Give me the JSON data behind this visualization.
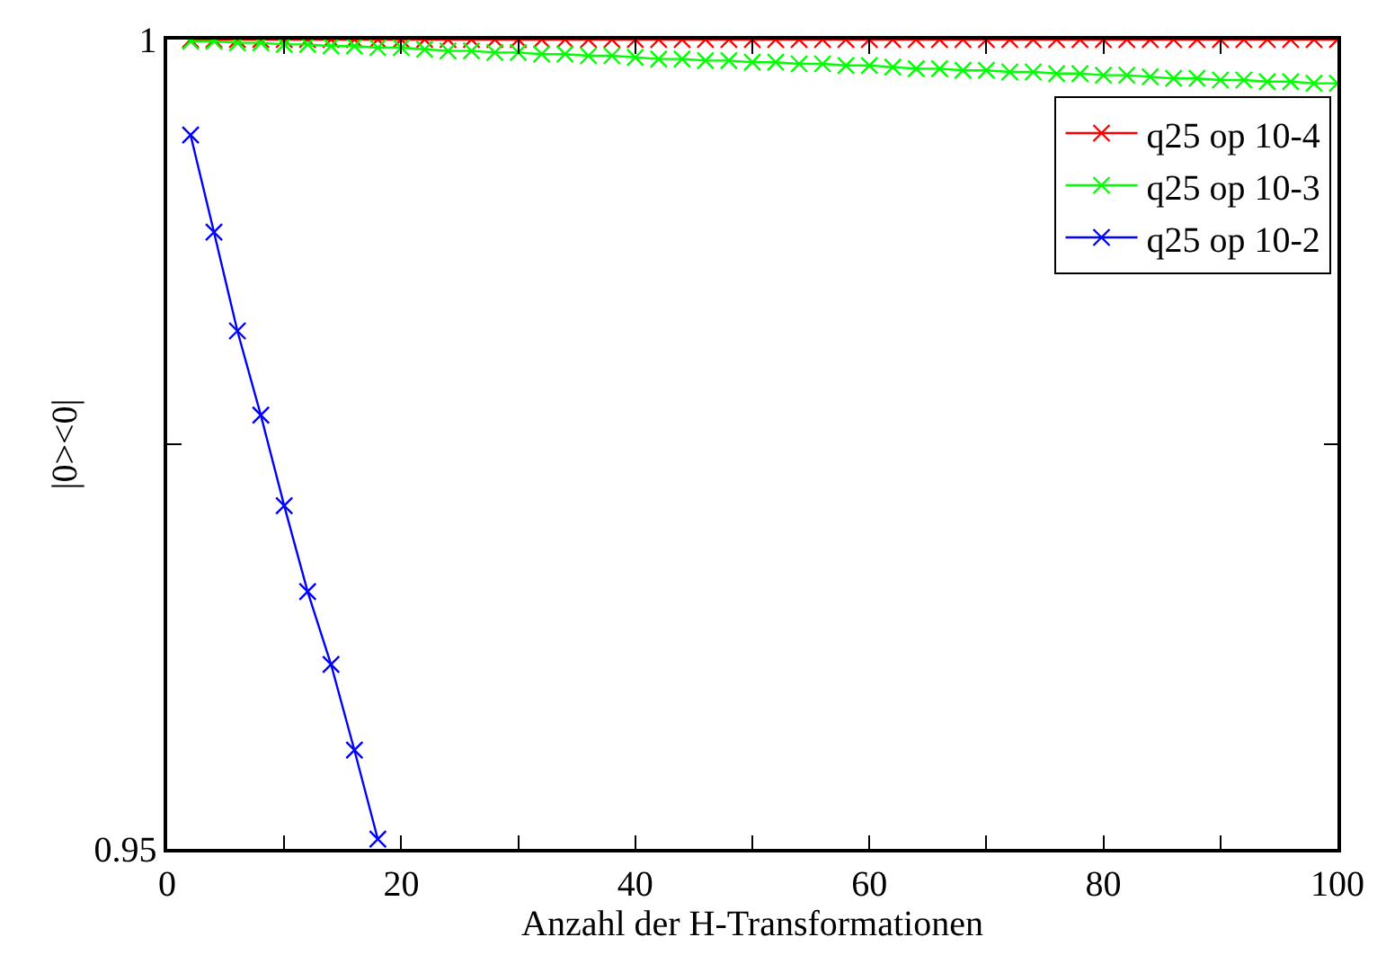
{
  "chart_data": {
    "type": "line",
    "xlabel": "Anzahl der H-Transformationen",
    "ylabel": "|0><0|",
    "xlim": [
      0,
      100
    ],
    "xticks": [
      0,
      {
        "value": 10,
        "label": null
      },
      20,
      {
        "value": 30,
        "label": null
      },
      40,
      {
        "value": 50,
        "label": null
      },
      60,
      {
        "value": 70,
        "label": null
      },
      80,
      {
        "value": 90,
        "label": null
      },
      100
    ],
    "ylim": [
      0.95,
      1
    ],
    "yticks": [
      0.95,
      {
        "value": 0.975,
        "label": null
      },
      1
    ],
    "legend": "top right",
    "marker": "cross",
    "line_style": "solid",
    "series": [
      {
        "name": "q25 op 10-4",
        "color": "#ff0000",
        "x": [
          2,
          4,
          6,
          8,
          10,
          12,
          14,
          16,
          18,
          20,
          22,
          24,
          26,
          28,
          30,
          32,
          34,
          36,
          38,
          40,
          42,
          44,
          46,
          48,
          50,
          52,
          54,
          56,
          58,
          60,
          62,
          64,
          66,
          68,
          70,
          72,
          74,
          76,
          78,
          80,
          82,
          84,
          86,
          88,
          90,
          92,
          94,
          96,
          98,
          100
        ],
        "values": [
          1,
          1,
          1,
          1,
          1,
          1,
          1,
          1,
          1,
          1,
          1,
          1,
          1,
          1,
          1,
          1,
          1,
          1,
          1,
          1,
          1,
          1,
          1,
          1,
          1,
          1,
          1,
          1,
          1,
          1,
          1,
          1,
          1,
          1,
          1,
          1,
          1,
          1,
          1,
          1,
          1,
          1,
          1,
          1,
          1,
          1,
          1,
          1,
          1,
          1
        ]
      },
      {
        "name": "q25 op 10-3",
        "color": "#00ff00",
        "x": [
          2,
          4,
          6,
          8,
          10,
          12,
          14,
          16,
          18,
          20,
          22,
          24,
          26,
          28,
          30,
          32,
          34,
          36,
          38,
          40,
          42,
          44,
          46,
          48,
          50,
          52,
          54,
          56,
          58,
          60,
          62,
          64,
          66,
          68,
          70,
          72,
          74,
          76,
          78,
          80,
          82,
          84,
          86,
          88,
          90,
          92,
          94,
          96,
          98,
          100
        ],
        "values": [
          0.9999,
          0.9999,
          0.9998,
          0.9998,
          0.9997,
          0.9997,
          0.9996,
          0.9996,
          0.9995,
          0.9995,
          0.9994,
          0.9993,
          0.9993,
          0.9992,
          0.9992,
          0.9991,
          0.9991,
          0.999,
          0.999,
          0.9989,
          0.9988,
          0.9988,
          0.9987,
          0.9987,
          0.9986,
          0.9986,
          0.9985,
          0.9985,
          0.9984,
          0.9984,
          0.9983,
          0.9982,
          0.9982,
          0.9981,
          0.9981,
          0.998,
          0.998,
          0.9979,
          0.9979,
          0.9978,
          0.9978,
          0.9977,
          0.9976,
          0.9976,
          0.9975,
          0.9975,
          0.9974,
          0.9974,
          0.9973,
          0.9973
        ]
      },
      {
        "name": "q25 op 10-2",
        "color": "#0000ff",
        "x": [
          2,
          4,
          6,
          8,
          10,
          12,
          14,
          16,
          18
        ],
        "values": [
          0.9941,
          0.9881,
          0.982,
          0.9768,
          0.9712,
          0.9659,
          0.9614,
          0.9561,
          0.9506
        ]
      }
    ]
  }
}
